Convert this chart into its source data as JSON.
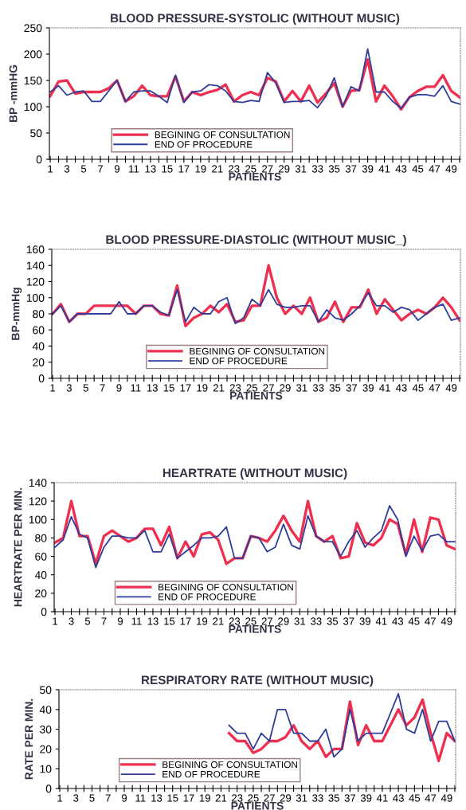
{
  "chart_data": [
    {
      "type": "line",
      "title": "BLOOD PRESSURE-SYSTOLIC (WITHOUT MUSIC)",
      "xlabel": "PATIENTS",
      "ylabel": "BP -mmHG",
      "categories": [
        "1",
        null,
        "3",
        null,
        "5",
        null,
        "7",
        null,
        "9",
        null,
        "11",
        null,
        "13",
        null,
        "15",
        null,
        "17",
        null,
        "19",
        null,
        "21",
        null,
        "23",
        null,
        "25",
        null,
        "27",
        null,
        "29",
        null,
        "31",
        null,
        "33",
        null,
        "35",
        null,
        "37",
        null,
        "39",
        null,
        "41",
        null,
        "43",
        null,
        "45",
        null,
        "47",
        null,
        "49",
        null
      ],
      "ylim": [
        0,
        250
      ],
      "yticks": [
        0,
        50,
        100,
        150,
        200,
        250
      ],
      "grid": false,
      "legend": "bottom left",
      "series": [
        {
          "name": "BEGINING OF CONSULTATION",
          "color": "#ee3050",
          "values": [
            120,
            148,
            150,
            125,
            128,
            128,
            128,
            135,
            150,
            110,
            120,
            140,
            122,
            120,
            120,
            158,
            110,
            128,
            122,
            128,
            132,
            142,
            110,
            122,
            128,
            122,
            155,
            148,
            110,
            130,
            110,
            140,
            108,
            125,
            145,
            100,
            130,
            132,
            190,
            110,
            140,
            120,
            95,
            118,
            130,
            138,
            138,
            160,
            130,
            118
          ]
        },
        {
          "name": "END OF PROCEDURE",
          "color": "#2e3c9a",
          "values": [
            128,
            140,
            122,
            128,
            130,
            110,
            110,
            130,
            150,
            110,
            128,
            130,
            130,
            120,
            108,
            160,
            108,
            128,
            130,
            142,
            140,
            130,
            110,
            108,
            112,
            110,
            165,
            145,
            108,
            110,
            110,
            112,
            98,
            120,
            155,
            100,
            138,
            130,
            210,
            128,
            128,
            110,
            97,
            118,
            123,
            123,
            120,
            140,
            110,
            105
          ]
        }
      ]
    },
    {
      "type": "line",
      "title": "BLOOD PRESSURE-DIASTOLIC (WITHOUT MUSIC_)",
      "xlabel": "PATIENTS",
      "ylabel": "BP-mmHg",
      "categories": [
        "1",
        null,
        "3",
        null,
        "5",
        null,
        "7",
        null,
        "9",
        null,
        "11",
        null,
        "13",
        null,
        "15",
        null,
        "17",
        null,
        "19",
        null,
        "21",
        null,
        "23",
        null,
        "25",
        null,
        "27",
        null,
        "29",
        null,
        "31",
        null,
        "33",
        null,
        "35",
        null,
        "37",
        null,
        "39",
        null,
        "41",
        null,
        "43",
        null,
        "45",
        null,
        "47",
        null,
        "49",
        null
      ],
      "ylim": [
        0,
        160
      ],
      "yticks": [
        0,
        20,
        40,
        60,
        80,
        100,
        120,
        140,
        160
      ],
      "grid": false,
      "legend": "bottom",
      "series": [
        {
          "name": "BEGINING OF CONSULTATION",
          "color": "#ee3050",
          "values": [
            80,
            92,
            70,
            80,
            80,
            90,
            90,
            90,
            90,
            90,
            80,
            90,
            90,
            80,
            78,
            115,
            65,
            75,
            80,
            90,
            82,
            92,
            70,
            72,
            90,
            90,
            140,
            100,
            80,
            90,
            80,
            100,
            70,
            75,
            95,
            70,
            88,
            88,
            110,
            80,
            98,
            85,
            72,
            80,
            85,
            80,
            88,
            100,
            88,
            72
          ]
        },
        {
          "name": "END OF PROCEDURE",
          "color": "#2e3c9a",
          "values": [
            80,
            90,
            70,
            80,
            80,
            80,
            80,
            80,
            95,
            80,
            80,
            90,
            90,
            82,
            78,
            110,
            70,
            88,
            80,
            80,
            95,
            100,
            68,
            75,
            98,
            90,
            110,
            92,
            88,
            88,
            90,
            90,
            70,
            85,
            75,
            72,
            80,
            90,
            106,
            90,
            90,
            82,
            88,
            85,
            72,
            80,
            88,
            92,
            72,
            75
          ]
        }
      ]
    },
    {
      "type": "line",
      "title": "HEARTRATE (WITHOUT MUSIC)",
      "xlabel": "PATIENTS",
      "ylabel": "HEARTRATE PER MIN.",
      "categories": [
        "1",
        null,
        "3",
        null,
        "5",
        null,
        "7",
        null,
        "9",
        null,
        "11",
        null,
        "13",
        null,
        "15",
        null,
        "17",
        null,
        "19",
        null,
        "21",
        null,
        "23",
        null,
        "25",
        null,
        "27",
        null,
        "29",
        null,
        "31",
        null,
        "33",
        null,
        "35",
        null,
        "37",
        null,
        "39",
        null,
        "41",
        null,
        "43",
        null,
        "45",
        null,
        "47",
        null,
        "49",
        null
      ],
      "ylim": [
        0,
        140
      ],
      "yticks": [
        0,
        20,
        40,
        60,
        80,
        100,
        120,
        140
      ],
      "grid": false,
      "legend": "bottom left",
      "series": [
        {
          "name": "BEGINING OF CONSULTATION",
          "color": "#ee3050",
          "values": [
            75,
            80,
            120,
            82,
            82,
            52,
            82,
            88,
            82,
            76,
            80,
            90,
            90,
            72,
            92,
            58,
            76,
            60,
            84,
            86,
            78,
            52,
            58,
            58,
            82,
            80,
            76,
            88,
            104,
            88,
            76,
            120,
            82,
            76,
            82,
            58,
            60,
            96,
            75,
            72,
            80,
            100,
            95,
            62,
            100,
            65,
            102,
            100,
            72,
            68
          ]
        },
        {
          "name": "END OF PROCEDURE",
          "color": "#2e3c9a",
          "values": [
            70,
            78,
            103,
            84,
            80,
            48,
            70,
            82,
            82,
            80,
            80,
            88,
            65,
            65,
            84,
            58,
            65,
            72,
            80,
            80,
            82,
            92,
            58,
            58,
            82,
            80,
            65,
            70,
            95,
            72,
            68,
            104,
            82,
            76,
            76,
            60,
            76,
            88,
            70,
            80,
            88,
            115,
            100,
            60,
            82,
            66,
            82,
            84,
            76,
            76
          ]
        }
      ]
    },
    {
      "type": "line",
      "title": "RESPIRATORY RATE (WITHOUT MUSIC)",
      "xlabel": "PATIENTS",
      "ylabel": "RATE PER MIN.",
      "categories": [
        "1",
        null,
        "3",
        null,
        "5",
        null,
        "7",
        null,
        "9",
        null,
        "11",
        null,
        "13",
        null,
        "15",
        null,
        "17",
        null,
        "19",
        null,
        "21",
        null,
        "23",
        null,
        "25",
        null,
        "27",
        null,
        "29",
        null,
        "31",
        null,
        "33",
        null,
        "35",
        null,
        "37",
        null,
        "39",
        null,
        "41",
        null,
        "43",
        null,
        "45",
        null,
        "47",
        null,
        "49",
        null
      ],
      "ylim": [
        0,
        50
      ],
      "yticks": [
        0,
        10,
        20,
        30,
        40,
        50
      ],
      "grid": false,
      "legend": "bottom left",
      "series": [
        {
          "name": "BEGINING OF CONSULTATION",
          "color": "#ee3050",
          "values": [
            null,
            null,
            null,
            null,
            null,
            null,
            null,
            null,
            null,
            null,
            null,
            null,
            null,
            null,
            null,
            null,
            null,
            null,
            null,
            null,
            null,
            28,
            24,
            24,
            18,
            20,
            24,
            24,
            26,
            32,
            24,
            20,
            24,
            16,
            20,
            20,
            44,
            22,
            32,
            24,
            24,
            32,
            40,
            32,
            36,
            45,
            28,
            14,
            28,
            24
          ]
        },
        {
          "name": "END OF PROCEDURE",
          "color": "#2e3c9a",
          "values": [
            null,
            null,
            null,
            null,
            null,
            null,
            null,
            null,
            null,
            null,
            null,
            null,
            null,
            null,
            null,
            null,
            null,
            null,
            null,
            null,
            null,
            32,
            28,
            28,
            20,
            28,
            24,
            40,
            40,
            28,
            28,
            24,
            24,
            30,
            16,
            20,
            40,
            24,
            28,
            28,
            28,
            38,
            48,
            30,
            28,
            40,
            24,
            34,
            34,
            24
          ]
        }
      ]
    }
  ]
}
